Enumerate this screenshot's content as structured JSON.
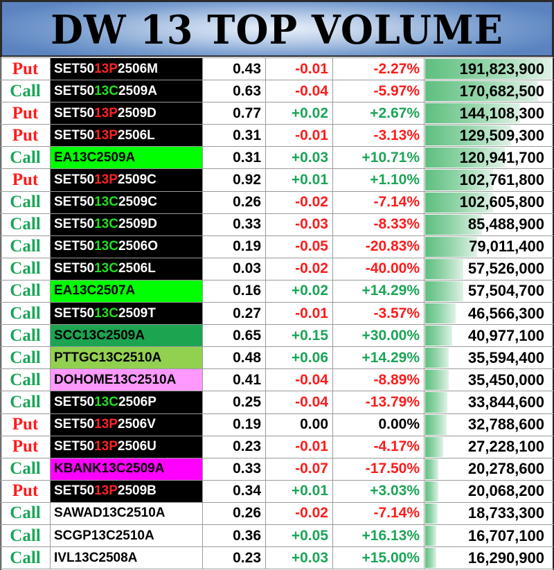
{
  "title": "DW 13 TOP VOLUME",
  "colors": {
    "put": "#ff1a1a",
    "call": "#1aa556",
    "set50_bg": "#000000",
    "ea_bg": "#00ff00",
    "scc_bg": "#1da451",
    "pttgc_bg": "#92d050",
    "dohome_bg": "#ff99ff",
    "kbank_bg": "#ff00ff",
    "plain_bg": "#ffffff",
    "volume_bar": "#5ebf7f"
  },
  "max_volume": 191823900,
  "rows": [
    {
      "type": "Put",
      "ticker_pre": "SET50",
      "ticker_mid": "13P",
      "ticker_post": "2506M",
      "bg": "set50",
      "price": "0.43",
      "change": "-0.01",
      "pct": "-2.27%",
      "dir": "neg",
      "volume": "191,823,900",
      "vol_num": 191823900
    },
    {
      "type": "Call",
      "ticker_pre": "SET50",
      "ticker_mid": "13C",
      "ticker_post": "2509A",
      "bg": "set50",
      "price": "0.63",
      "change": "-0.04",
      "pct": "-5.97%",
      "dir": "neg",
      "volume": "170,682,500",
      "vol_num": 170682500
    },
    {
      "type": "Put",
      "ticker_pre": "SET50",
      "ticker_mid": "13P",
      "ticker_post": "2509D",
      "bg": "set50",
      "price": "0.77",
      "change": "+0.02",
      "pct": "+2.67%",
      "dir": "pos",
      "volume": "144,108,300",
      "vol_num": 144108300
    },
    {
      "type": "Put",
      "ticker_pre": "SET50",
      "ticker_mid": "13P",
      "ticker_post": "2506L",
      "bg": "set50",
      "price": "0.31",
      "change": "-0.01",
      "pct": "-3.13%",
      "dir": "neg",
      "volume": "129,509,300",
      "vol_num": 129509300
    },
    {
      "type": "Call",
      "ticker_pre": "EA13C2509A",
      "ticker_mid": "",
      "ticker_post": "",
      "bg": "ea",
      "price": "0.31",
      "change": "+0.03",
      "pct": "+10.71%",
      "dir": "pos",
      "volume": "120,941,700",
      "vol_num": 120941700
    },
    {
      "type": "Put",
      "ticker_pre": "SET50",
      "ticker_mid": "13P",
      "ticker_post": "2509C",
      "bg": "set50",
      "price": "0.92",
      "change": "+0.01",
      "pct": "+1.10%",
      "dir": "pos",
      "volume": "102,761,800",
      "vol_num": 102761800
    },
    {
      "type": "Call",
      "ticker_pre": "SET50",
      "ticker_mid": "13C",
      "ticker_post": "2509C",
      "bg": "set50",
      "price": "0.26",
      "change": "-0.02",
      "pct": "-7.14%",
      "dir": "neg",
      "volume": "102,605,800",
      "vol_num": 102605800
    },
    {
      "type": "Call",
      "ticker_pre": "SET50",
      "ticker_mid": "13C",
      "ticker_post": "2509D",
      "bg": "set50",
      "price": "0.33",
      "change": "-0.03",
      "pct": "-8.33%",
      "dir": "neg",
      "volume": "85,488,900",
      "vol_num": 85488900
    },
    {
      "type": "Call",
      "ticker_pre": "SET50",
      "ticker_mid": "13C",
      "ticker_post": "2506O",
      "bg": "set50",
      "price": "0.19",
      "change": "-0.05",
      "pct": "-20.83%",
      "dir": "neg",
      "volume": "79,011,400",
      "vol_num": 79011400
    },
    {
      "type": "Call",
      "ticker_pre": "SET50",
      "ticker_mid": "13C",
      "ticker_post": "2506L",
      "bg": "set50",
      "price": "0.03",
      "change": "-0.02",
      "pct": "-40.00%",
      "dir": "neg",
      "volume": "57,526,000",
      "vol_num": 57526000
    },
    {
      "type": "Call",
      "ticker_pre": "EA13C2507A",
      "ticker_mid": "",
      "ticker_post": "",
      "bg": "ea",
      "price": "0.16",
      "change": "+0.02",
      "pct": "+14.29%",
      "dir": "pos",
      "volume": "57,504,700",
      "vol_num": 57504700
    },
    {
      "type": "Call",
      "ticker_pre": "SET50",
      "ticker_mid": "13C",
      "ticker_post": "2509T",
      "bg": "set50",
      "price": "0.27",
      "change": "-0.01",
      "pct": "-3.57%",
      "dir": "neg",
      "volume": "46,566,300",
      "vol_num": 46566300
    },
    {
      "type": "Call",
      "ticker_pre": "SCC13C2509A",
      "ticker_mid": "",
      "ticker_post": "",
      "bg": "scc",
      "price": "0.65",
      "change": "+0.15",
      "pct": "+30.00%",
      "dir": "pos",
      "volume": "40,977,100",
      "vol_num": 40977100
    },
    {
      "type": "Call",
      "ticker_pre": "PTTGC13C2510A",
      "ticker_mid": "",
      "ticker_post": "",
      "bg": "pttgc",
      "price": "0.48",
      "change": "+0.06",
      "pct": "+14.29%",
      "dir": "pos",
      "volume": "35,594,400",
      "vol_num": 35594400
    },
    {
      "type": "Call",
      "ticker_pre": "DOHOME13C2510A",
      "ticker_mid": "",
      "ticker_post": "",
      "bg": "dohome",
      "price": "0.41",
      "change": "-0.04",
      "pct": "-8.89%",
      "dir": "neg",
      "volume": "35,450,000",
      "vol_num": 35450000
    },
    {
      "type": "Call",
      "ticker_pre": "SET50",
      "ticker_mid": "13C",
      "ticker_post": "2506P",
      "bg": "set50",
      "price": "0.25",
      "change": "-0.04",
      "pct": "-13.79%",
      "dir": "neg",
      "volume": "33,844,600",
      "vol_num": 33844600
    },
    {
      "type": "Put",
      "ticker_pre": "SET50",
      "ticker_mid": "13P",
      "ticker_post": "2506V",
      "bg": "set50",
      "price": "0.19",
      "change": "0.00",
      "pct": "0.00%",
      "dir": "zero",
      "volume": "32,788,600",
      "vol_num": 32788600
    },
    {
      "type": "Put",
      "ticker_pre": "SET50",
      "ticker_mid": "13P",
      "ticker_post": "2506U",
      "bg": "set50",
      "price": "0.23",
      "change": "-0.01",
      "pct": "-4.17%",
      "dir": "neg",
      "volume": "27,228,100",
      "vol_num": 27228100
    },
    {
      "type": "Call",
      "ticker_pre": "KBANK13C2509A",
      "ticker_mid": "",
      "ticker_post": "",
      "bg": "kbank",
      "price": "0.33",
      "change": "-0.07",
      "pct": "-17.50%",
      "dir": "neg",
      "volume": "20,278,600",
      "vol_num": 20278600
    },
    {
      "type": "Put",
      "ticker_pre": "SET50",
      "ticker_mid": "13P",
      "ticker_post": "2509B",
      "bg": "set50",
      "price": "0.34",
      "change": "+0.01",
      "pct": "+3.03%",
      "dir": "pos",
      "volume": "20,068,200",
      "vol_num": 20068200
    },
    {
      "type": "Call",
      "ticker_pre": "SAWAD13C2510A",
      "ticker_mid": "",
      "ticker_post": "",
      "bg": "plain",
      "price": "0.26",
      "change": "-0.02",
      "pct": "-7.14%",
      "dir": "neg",
      "volume": "18,733,300",
      "vol_num": 18733300
    },
    {
      "type": "Call",
      "ticker_pre": "SCGP13C2510A",
      "ticker_mid": "",
      "ticker_post": "",
      "bg": "plain",
      "price": "0.36",
      "change": "+0.05",
      "pct": "+16.13%",
      "dir": "pos",
      "volume": "16,707,100",
      "vol_num": 16707100
    },
    {
      "type": "Call",
      "ticker_pre": "IVL13C2508A",
      "ticker_mid": "",
      "ticker_post": "",
      "bg": "plain",
      "price": "0.23",
      "change": "+0.03",
      "pct": "+15.00%",
      "dir": "pos",
      "volume": "16,290,900",
      "vol_num": 16290900
    }
  ]
}
